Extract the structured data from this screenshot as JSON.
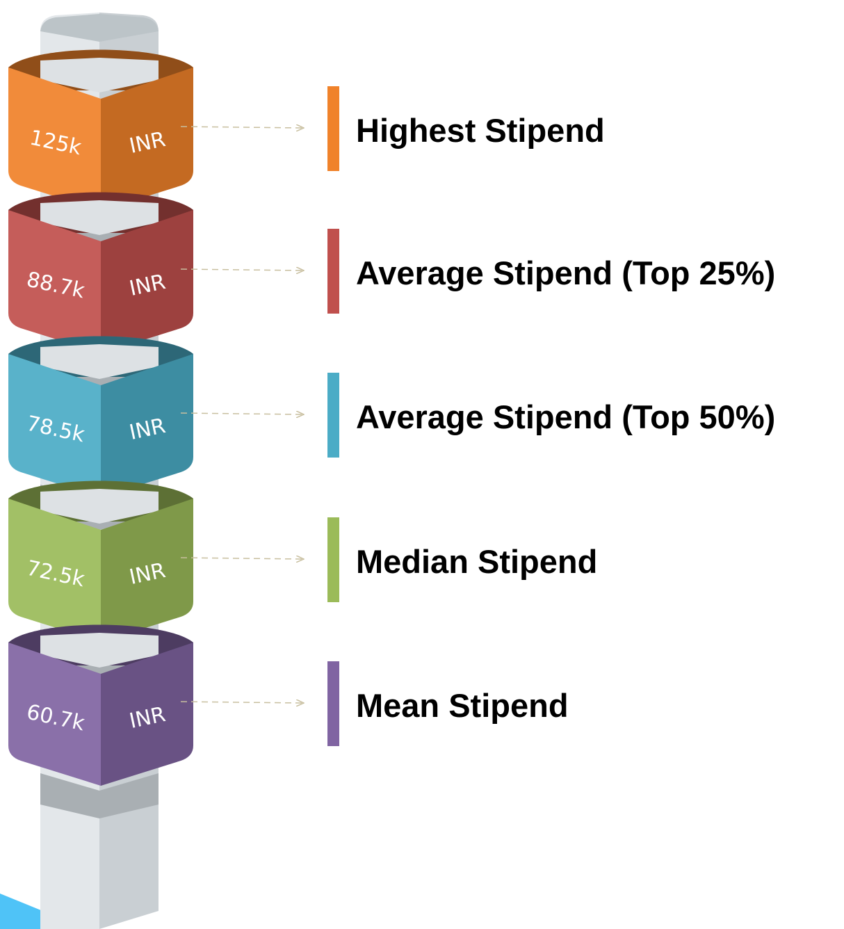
{
  "items": [
    {
      "value": "125k",
      "unit": "INR",
      "label": "Highest Stipend",
      "color": "#f0822a"
    },
    {
      "value": "88.7k",
      "unit": "INR",
      "label": "Average Stipend (Top 25%)",
      "color": "#c0504d"
    },
    {
      "value": "78.5k",
      "unit": "INR",
      "label": "Average Stipend (Top 50%)",
      "color": "#4bacc6"
    },
    {
      "value": "72.5k",
      "unit": "INR",
      "label": "Median Stipend",
      "color": "#9bbb59"
    },
    {
      "value": "60.7k",
      "unit": "INR",
      "label": "Mean Stipend",
      "color": "#8064a2"
    }
  ]
}
